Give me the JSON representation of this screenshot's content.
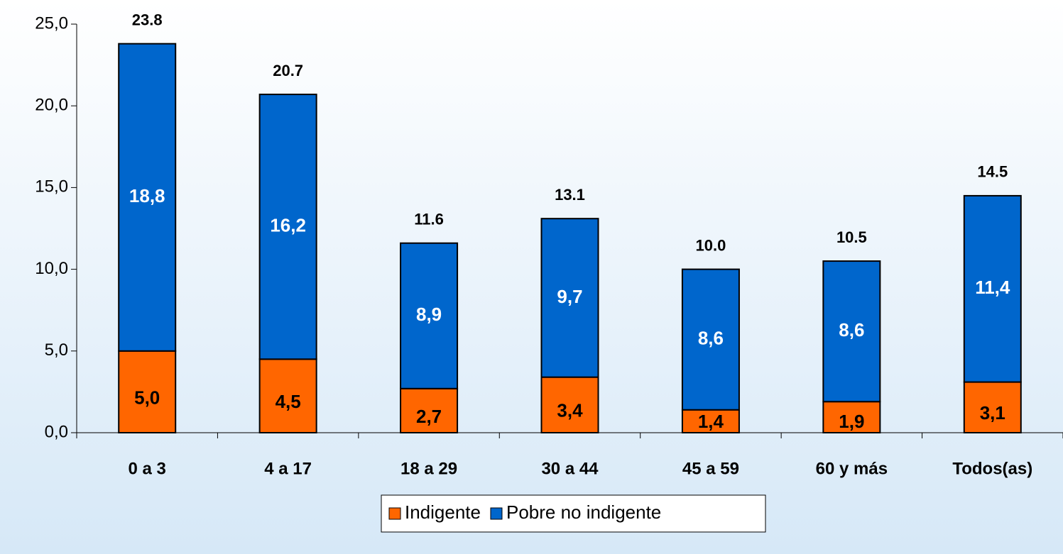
{
  "chart_data": {
    "type": "stacked_bar",
    "categories": [
      "0 a 3",
      "4 a 17",
      "18 a 29",
      "30 a 44",
      "45 a 59",
      "60 y más",
      "Todos(as)"
    ],
    "series": [
      {
        "name": "Indigente",
        "color": "#ff6600",
        "values": [
          5.0,
          4.5,
          2.7,
          3.4,
          1.4,
          1.9,
          3.1
        ],
        "value_labels": [
          "5,0",
          "4,5",
          "2,7",
          "3,4",
          "1,4",
          "1,9",
          "3,1"
        ]
      },
      {
        "name": "Pobre no indigente",
        "color": "#0066cc",
        "values": [
          18.8,
          16.2,
          8.9,
          9.7,
          8.6,
          8.6,
          11.4
        ],
        "value_labels": [
          "18,8",
          "16,2",
          "8,9",
          "9,7",
          "8,6",
          "8,6",
          "11,4"
        ]
      }
    ],
    "total_labels": [
      "23.8",
      "20.7",
      "11.6",
      "13.1",
      "10.0",
      "10.5",
      "14.5"
    ],
    "ylim": [
      0,
      25
    ],
    "yticks": [
      {
        "value": 0,
        "label": "0,0"
      },
      {
        "value": 5,
        "label": "5,0"
      },
      {
        "value": 10,
        "label": "10,0"
      },
      {
        "value": 15,
        "label": "15,0"
      },
      {
        "value": 20,
        "label": "20,0"
      },
      {
        "value": 25,
        "label": "25,0"
      }
    ],
    "legend": "bottom"
  }
}
